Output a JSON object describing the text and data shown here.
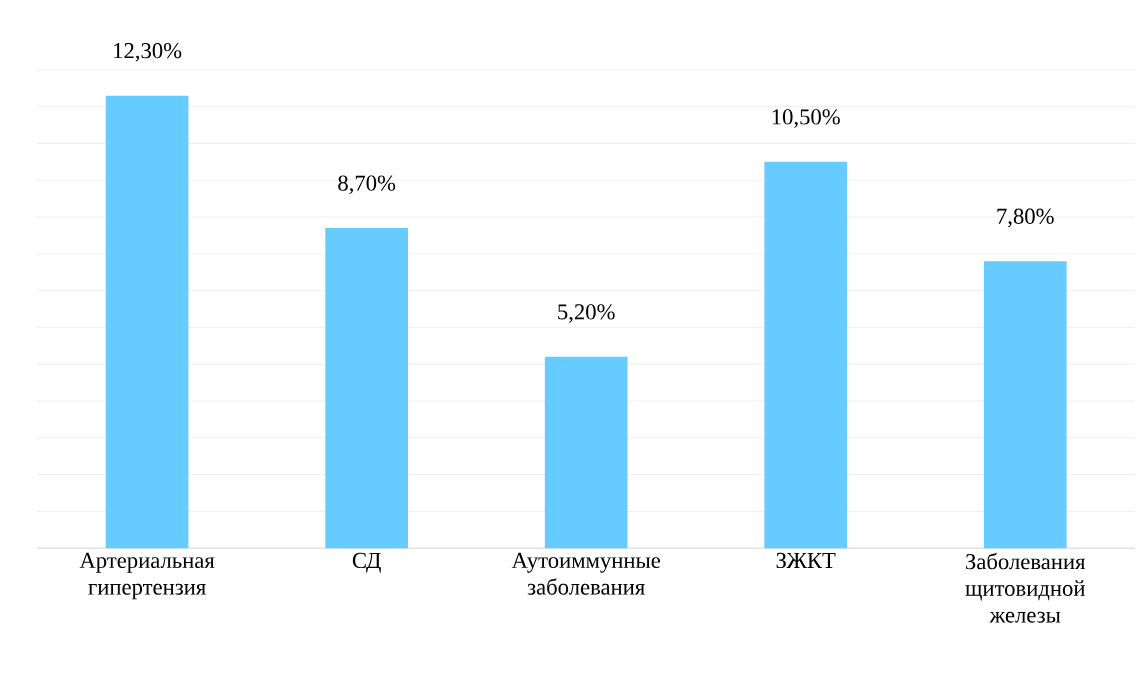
{
  "chart_data": {
    "type": "bar",
    "categories": [
      "Артериальная гипертензия",
      "СД",
      "Аутоиммунные заболевания",
      "ЗЖКТ",
      "Заболевания щитовидной железы"
    ],
    "values": [
      12.3,
      8.7,
      5.2,
      10.5,
      7.8
    ],
    "value_labels": [
      "12,30%",
      "8,70%",
      "5,20%",
      "10,50%",
      "7,80%"
    ],
    "color": "#66ccff",
    "tick_labels": "x",
    "grid": "y"
  }
}
